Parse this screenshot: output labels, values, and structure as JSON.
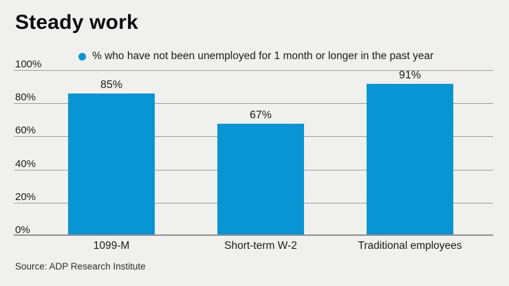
{
  "title": "Steady work",
  "legend": {
    "marker": "dot-icon",
    "label": "% who have not been unemployed for 1 month or longer in the past year"
  },
  "colors": {
    "bar_blue": "#0995d3",
    "background": "#f0f0ee",
    "gridline": "#9d9d9d",
    "axis_line": "#8f8f8f"
  },
  "chart_data": {
    "type": "bar",
    "title": "Steady work",
    "legend_entries": [
      "% who have not been unemployed for 1 month or longer in the past year"
    ],
    "legend_position": "top",
    "categories": [
      "1099-M",
      "Short-term W-2",
      "Traditional employees"
    ],
    "values": [
      85,
      67,
      91
    ],
    "value_labels": [
      "85%",
      "67%",
      "91%"
    ],
    "xlabel": "",
    "ylabel": "",
    "ylim": [
      0,
      100
    ],
    "ytick_labels": [
      "100%",
      "80%",
      "60%",
      "40%",
      "20%",
      "0%"
    ],
    "grid": true,
    "bar_color": "#0995d3"
  },
  "source": "Source: ADP Research Institute"
}
